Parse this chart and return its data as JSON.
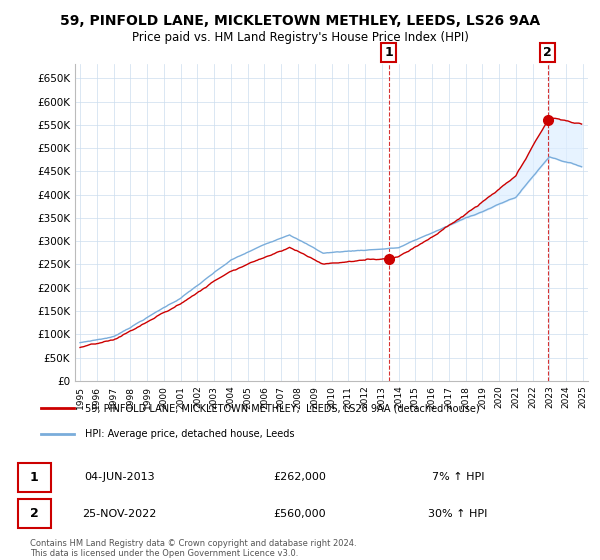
{
  "title": "59, PINFOLD LANE, MICKLETOWN METHLEY, LEEDS, LS26 9AA",
  "subtitle": "Price paid vs. HM Land Registry's House Price Index (HPI)",
  "ylim": [
    0,
    680000
  ],
  "yticks": [
    0,
    50000,
    100000,
    150000,
    200000,
    250000,
    300000,
    350000,
    400000,
    450000,
    500000,
    550000,
    600000,
    650000
  ],
  "ytick_labels": [
    "£0",
    "£50K",
    "£100K",
    "£150K",
    "£200K",
    "£250K",
    "£300K",
    "£350K",
    "£400K",
    "£450K",
    "£500K",
    "£550K",
    "£600K",
    "£650K"
  ],
  "xlim_start": 1994.7,
  "xlim_end": 2025.3,
  "hpi_color": "#7aaddb",
  "hpi_fill_color": "#ddeeff",
  "price_color": "#cc0000",
  "transaction1_date": 2013.42,
  "transaction1_price": 262000,
  "transaction2_date": 2022.9,
  "transaction2_price": 560000,
  "legend_label1": "59, PINFOLD LANE, MICKLETOWN METHLEY,  LEEDS, LS26 9AA (detached house)",
  "legend_label2": "HPI: Average price, detached house, Leeds",
  "table_row1": [
    "1",
    "04-JUN-2013",
    "£262,000",
    "7% ↑ HPI"
  ],
  "table_row2": [
    "2",
    "25-NOV-2022",
    "£560,000",
    "30% ↑ HPI"
  ],
  "footer": "Contains HM Land Registry data © Crown copyright and database right 2024.\nThis data is licensed under the Open Government Licence v3.0.",
  "background_color": "#ffffff",
  "grid_color": "#ccddee"
}
